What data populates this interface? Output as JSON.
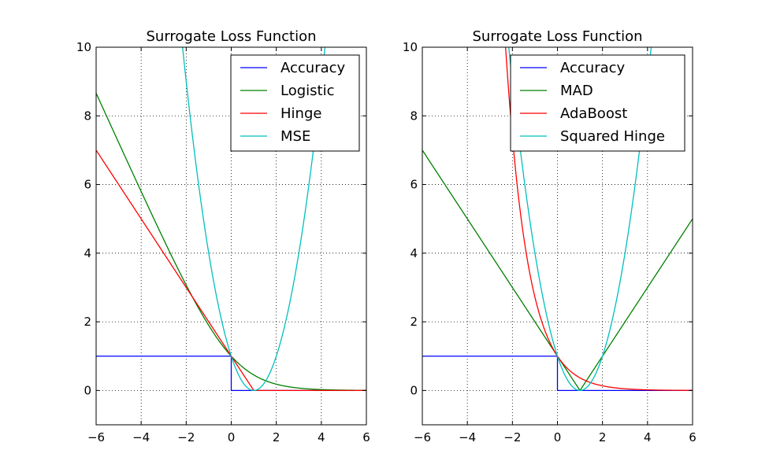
{
  "chart_data": [
    {
      "type": "line",
      "title": "Surrogate Loss Function",
      "xlabel": "",
      "ylabel": "",
      "xlim": [
        -6,
        6
      ],
      "ylim": [
        -1,
        10
      ],
      "xticks": [
        -6,
        -4,
        -2,
        0,
        2,
        4,
        6
      ],
      "yticks": [
        0,
        2,
        4,
        6,
        8,
        10
      ],
      "xtick_labels": [
        "−6",
        "−4",
        "−2",
        "0",
        "2",
        "4",
        "6"
      ],
      "ytick_labels": [
        "0",
        "2",
        "4",
        "6",
        "8",
        "10"
      ],
      "grid": true,
      "legend_position": "top-right",
      "series": [
        {
          "name": "Accuracy",
          "color": "#0000ff",
          "function": "accuracy"
        },
        {
          "name": "Logistic",
          "color": "#008000",
          "function": "logistic"
        },
        {
          "name": "Hinge",
          "color": "#ff0000",
          "function": "hinge"
        },
        {
          "name": "MSE",
          "color": "#00bfbf",
          "function": "mse"
        }
      ]
    },
    {
      "type": "line",
      "title": "Surrogate Loss Function",
      "xlabel": "",
      "ylabel": "",
      "xlim": [
        -6,
        6
      ],
      "ylim": [
        -1,
        10
      ],
      "xticks": [
        -6,
        -4,
        -2,
        0,
        2,
        4,
        6
      ],
      "yticks": [
        0,
        2,
        4,
        6,
        8,
        10
      ],
      "xtick_labels": [
        "−6",
        "−4",
        "−2",
        "0",
        "2",
        "4",
        "6"
      ],
      "ytick_labels": [
        "0",
        "2",
        "4",
        "6",
        "8",
        "10"
      ],
      "grid": true,
      "legend_position": "top-right",
      "series": [
        {
          "name": "Accuracy",
          "color": "#0000ff",
          "function": "accuracy"
        },
        {
          "name": "MAD",
          "color": "#008000",
          "function": "mad"
        },
        {
          "name": "AdaBoost",
          "color": "#ff0000",
          "function": "adaboost"
        },
        {
          "name": "Squared Hinge",
          "color": "#00bfbf",
          "function": "squared_hinge"
        }
      ]
    }
  ]
}
